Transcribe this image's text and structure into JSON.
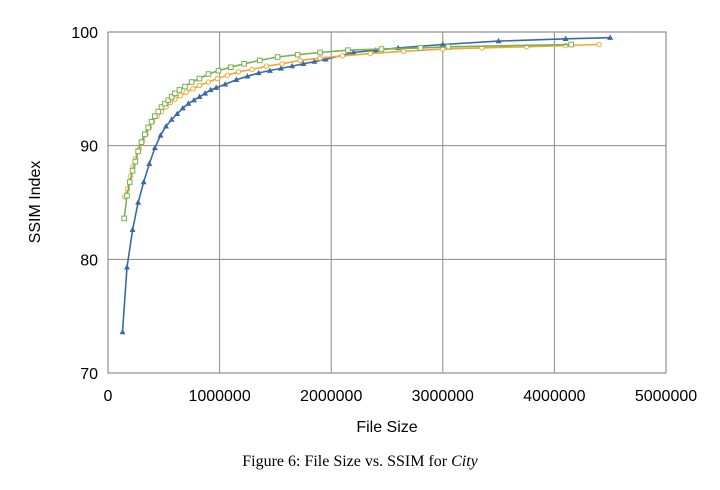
{
  "caption": {
    "prefix": "Figure 6: File Size vs. SSIM for ",
    "subject": "City"
  },
  "chart_data": {
    "type": "line",
    "title": "",
    "xlabel": "File Size",
    "ylabel": "SSIM Index",
    "xlim": [
      0,
      5000000
    ],
    "ylim": [
      70,
      100
    ],
    "xticks": [
      0,
      1000000,
      2000000,
      3000000,
      4000000,
      5000000
    ],
    "xtick_labels": [
      "0",
      "1000000",
      "2000000",
      "3000000",
      "4000000",
      "5000000"
    ],
    "yticks": [
      70,
      80,
      90,
      100
    ],
    "ytick_labels": [
      "70",
      "80",
      "90",
      "100"
    ],
    "grid": true,
    "legend": "none",
    "series": [
      {
        "color": "#3a6aa6",
        "marker": "triangle",
        "x": [
          130000,
          170000,
          220000,
          270000,
          320000,
          370000,
          420000,
          470000,
          520000,
          570000,
          620000,
          670000,
          720000,
          770000,
          820000,
          870000,
          920000,
          970000,
          1050000,
          1150000,
          1250000,
          1350000,
          1450000,
          1550000,
          1650000,
          1750000,
          1850000,
          1950000,
          2200000,
          2400000,
          2600000,
          3000000,
          3500000,
          4100000,
          4500000
        ],
        "y": [
          73.6,
          79.3,
          82.6,
          85.0,
          86.8,
          88.4,
          89.8,
          90.9,
          91.7,
          92.3,
          92.8,
          93.3,
          93.7,
          94.0,
          94.3,
          94.6,
          94.9,
          95.1,
          95.4,
          95.8,
          96.1,
          96.4,
          96.6,
          96.8,
          97.0,
          97.2,
          97.4,
          97.6,
          98.2,
          98.4,
          98.6,
          98.9,
          99.2,
          99.4,
          99.5
        ]
      },
      {
        "color": "#f0a830",
        "marker": "circle",
        "x": [
          150000,
          175000,
          200000,
          225000,
          250000,
          280000,
          310000,
          340000,
          370000,
          400000,
          440000,
          480000,
          520000,
          560000,
          600000,
          650000,
          700000,
          760000,
          820000,
          900000,
          980000,
          1070000,
          1170000,
          1290000,
          1420000,
          1560000,
          1720000,
          1900000,
          2100000,
          2350000,
          2650000,
          3000000,
          3350000,
          3750000,
          4100000,
          4400000
        ],
        "y": [
          85.5,
          86.2,
          87.3,
          88.2,
          88.9,
          89.7,
          90.4,
          91.0,
          91.6,
          92.1,
          92.6,
          93.0,
          93.4,
          93.8,
          94.1,
          94.4,
          94.7,
          95.0,
          95.3,
          95.6,
          95.9,
          96.2,
          96.5,
          96.7,
          97.0,
          97.2,
          97.5,
          97.7,
          97.9,
          98.1,
          98.3,
          98.5,
          98.6,
          98.7,
          98.8,
          98.9
        ]
      },
      {
        "color": "#7ab055",
        "marker": "square",
        "x": [
          145000,
          170000,
          195000,
          220000,
          245000,
          270000,
          300000,
          330000,
          360000,
          390000,
          420000,
          450000,
          480000,
          510000,
          540000,
          570000,
          600000,
          640000,
          690000,
          750000,
          820000,
          900000,
          990000,
          1100000,
          1220000,
          1360000,
          1520000,
          1700000,
          1900000,
          2150000,
          2450000,
          2800000,
          3050000,
          4150000
        ],
        "y": [
          83.6,
          85.6,
          86.8,
          87.8,
          88.6,
          89.5,
          90.3,
          91.0,
          91.6,
          92.1,
          92.6,
          93.0,
          93.4,
          93.7,
          94.0,
          94.3,
          94.6,
          94.9,
          95.2,
          95.6,
          95.9,
          96.3,
          96.6,
          96.9,
          97.2,
          97.5,
          97.8,
          98.0,
          98.2,
          98.4,
          98.5,
          98.6,
          98.7,
          98.9
        ]
      }
    ]
  }
}
